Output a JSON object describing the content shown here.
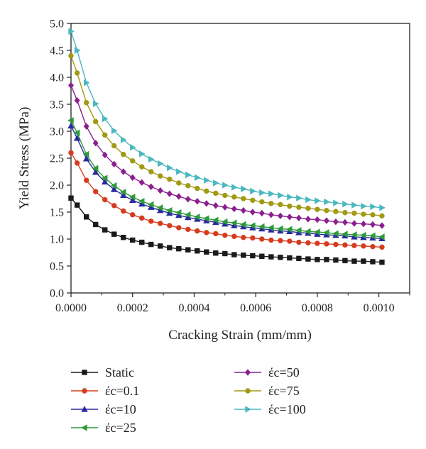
{
  "chart_data": {
    "type": "line",
    "xlabel": "Cracking Strain (mm/mm)",
    "ylabel": "Yield Stress (MPa)",
    "xlim": [
      0.0,
      0.0011
    ],
    "ylim": [
      0.0,
      5.0
    ],
    "x_ticks": [
      0.0,
      0.0002,
      0.0004,
      0.0006,
      0.0008,
      0.001
    ],
    "x_tick_labels": [
      "0.0000",
      "0.0002",
      "0.0004",
      "0.0006",
      "0.0008",
      "0.0010"
    ],
    "y_ticks": [
      0.0,
      0.5,
      1.0,
      1.5,
      2.0,
      2.5,
      3.0,
      3.5,
      4.0,
      4.5,
      5.0
    ],
    "y_tick_labels": [
      "0.0",
      "0.5",
      "1.0",
      "1.5",
      "2.0",
      "2.5",
      "3.0",
      "3.5",
      "4.0",
      "4.5",
      "5.0"
    ],
    "grid": false,
    "legend_position": "bottom",
    "x": [
      0.0,
      2e-05,
      5e-05,
      8e-05,
      0.00011,
      0.00014,
      0.00017,
      0.0002,
      0.00023,
      0.00026,
      0.00029,
      0.00032,
      0.00035,
      0.00038,
      0.00041,
      0.00044,
      0.00047,
      0.0005,
      0.00053,
      0.00056,
      0.00059,
      0.00062,
      0.00065,
      0.00068,
      0.00071,
      0.00074,
      0.00077,
      0.0008,
      0.00083,
      0.00086,
      0.00089,
      0.00092,
      0.00095,
      0.00098,
      0.00101
    ],
    "series": [
      {
        "name": "Static",
        "color": "#1a1a1a",
        "marker": "square",
        "values": [
          1.76,
          1.63,
          1.41,
          1.27,
          1.17,
          1.09,
          1.03,
          0.98,
          0.94,
          0.9,
          0.87,
          0.84,
          0.82,
          0.8,
          0.78,
          0.76,
          0.74,
          0.73,
          0.71,
          0.7,
          0.69,
          0.68,
          0.67,
          0.66,
          0.65,
          0.64,
          0.63,
          0.62,
          0.62,
          0.61,
          0.6,
          0.59,
          0.59,
          0.58,
          0.57
        ]
      },
      {
        "name": "έc=0.1",
        "color": "#d63b1e",
        "marker": "circle",
        "values": [
          2.6,
          2.41,
          2.09,
          1.88,
          1.73,
          1.62,
          1.52,
          1.45,
          1.39,
          1.33,
          1.29,
          1.25,
          1.21,
          1.18,
          1.15,
          1.12,
          1.1,
          1.07,
          1.05,
          1.03,
          1.02,
          1.0,
          0.98,
          0.97,
          0.96,
          0.94,
          0.93,
          0.92,
          0.91,
          0.9,
          0.89,
          0.88,
          0.87,
          0.86,
          0.85
        ]
      },
      {
        "name": "έc=10",
        "color": "#2a2aa0",
        "marker": "triangle-up",
        "values": [
          3.1,
          2.87,
          2.49,
          2.24,
          2.06,
          1.92,
          1.81,
          1.72,
          1.65,
          1.59,
          1.53,
          1.48,
          1.44,
          1.4,
          1.37,
          1.34,
          1.31,
          1.28,
          1.25,
          1.23,
          1.21,
          1.19,
          1.17,
          1.15,
          1.14,
          1.12,
          1.11,
          1.09,
          1.08,
          1.07,
          1.06,
          1.04,
          1.03,
          1.02,
          1.01
        ]
      },
      {
        "name": "έc=25",
        "color": "#2e9a3a",
        "marker": "triangle-left",
        "values": [
          3.2,
          2.97,
          2.57,
          2.31,
          2.13,
          1.99,
          1.87,
          1.78,
          1.7,
          1.64,
          1.58,
          1.53,
          1.49,
          1.45,
          1.41,
          1.38,
          1.35,
          1.32,
          1.3,
          1.27,
          1.25,
          1.23,
          1.21,
          1.19,
          1.18,
          1.16,
          1.14,
          1.13,
          1.12,
          1.1,
          1.09,
          1.08,
          1.07,
          1.06,
          1.04
        ]
      },
      {
        "name": "έc=50",
        "color": "#8a1f8f",
        "marker": "diamond",
        "values": [
          3.85,
          3.57,
          3.09,
          2.78,
          2.56,
          2.39,
          2.25,
          2.14,
          2.05,
          1.97,
          1.9,
          1.84,
          1.79,
          1.74,
          1.7,
          1.66,
          1.62,
          1.59,
          1.56,
          1.53,
          1.5,
          1.48,
          1.45,
          1.43,
          1.41,
          1.39,
          1.37,
          1.36,
          1.34,
          1.32,
          1.31,
          1.29,
          1.28,
          1.27,
          1.25
        ]
      },
      {
        "name": "έc=75",
        "color": "#a09a14",
        "marker": "circle",
        "values": [
          4.4,
          4.08,
          3.53,
          3.18,
          2.93,
          2.73,
          2.57,
          2.45,
          2.34,
          2.25,
          2.17,
          2.11,
          2.04,
          1.99,
          1.94,
          1.89,
          1.85,
          1.81,
          1.78,
          1.75,
          1.72,
          1.69,
          1.66,
          1.64,
          1.61,
          1.59,
          1.57,
          1.55,
          1.53,
          1.51,
          1.49,
          1.48,
          1.46,
          1.45,
          1.43
        ]
      },
      {
        "name": "έc=100",
        "color": "#4ab8bf",
        "marker": "triangle-right",
        "values": [
          4.85,
          4.5,
          3.9,
          3.51,
          3.23,
          3.01,
          2.84,
          2.7,
          2.58,
          2.48,
          2.4,
          2.32,
          2.25,
          2.19,
          2.14,
          2.09,
          2.04,
          2.0,
          1.96,
          1.93,
          1.89,
          1.86,
          1.84,
          1.81,
          1.78,
          1.76,
          1.73,
          1.71,
          1.69,
          1.67,
          1.65,
          1.63,
          1.61,
          1.6,
          1.58
        ]
      }
    ]
  }
}
